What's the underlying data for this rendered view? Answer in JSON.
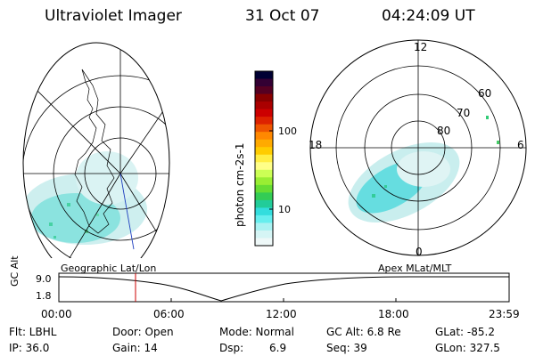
{
  "header": {
    "title": "Ultraviolet Imager",
    "date": "31 Oct 07",
    "time": "04:24:09 UT"
  },
  "left_panel": {
    "label": "Geographic Lat/Lon"
  },
  "right_panel": {
    "label": "Apex MLat/MLT",
    "mlt_labels": [
      "12",
      "18",
      "6",
      "0"
    ],
    "lat_labels": [
      "60",
      "70",
      "80"
    ]
  },
  "colorbar": {
    "label": "photon cm-2s-1",
    "ticks": [
      "100",
      "10"
    ],
    "colors": [
      "#000033",
      "#330033",
      "#550022",
      "#880000",
      "#aa0000",
      "#cc0000",
      "#dd2200",
      "#ee5500",
      "#ff8800",
      "#ffaa00",
      "#ffcc00",
      "#ffee44",
      "#ffff88",
      "#ccff55",
      "#99ee33",
      "#66dd33",
      "#33cc55",
      "#22cc99",
      "#33dddd",
      "#66eeee",
      "#aaf2f2",
      "#d5f5f5",
      "#eef8f8"
    ]
  },
  "timeline": {
    "ylabel": "GC Alt",
    "yticks": [
      "9.0",
      "1.8"
    ],
    "xticks": [
      "00:00",
      "06:00",
      "12:00",
      "18:00",
      "23:59"
    ],
    "cursor_color": "#cc0000"
  },
  "info": {
    "col1": [
      "Flt: LBHL",
      "IP: 36.0"
    ],
    "col2": [
      "Door: Open",
      "Gain: 14"
    ],
    "col3a": [
      "Mode: Normal",
      "Dsp:"
    ],
    "col3b": [
      "6.9"
    ],
    "col4": [
      "GC Alt: 6.8 Re",
      "Seq: 39"
    ],
    "col5": [
      "GLat: -85.2",
      "GLon: 327.5"
    ]
  }
}
